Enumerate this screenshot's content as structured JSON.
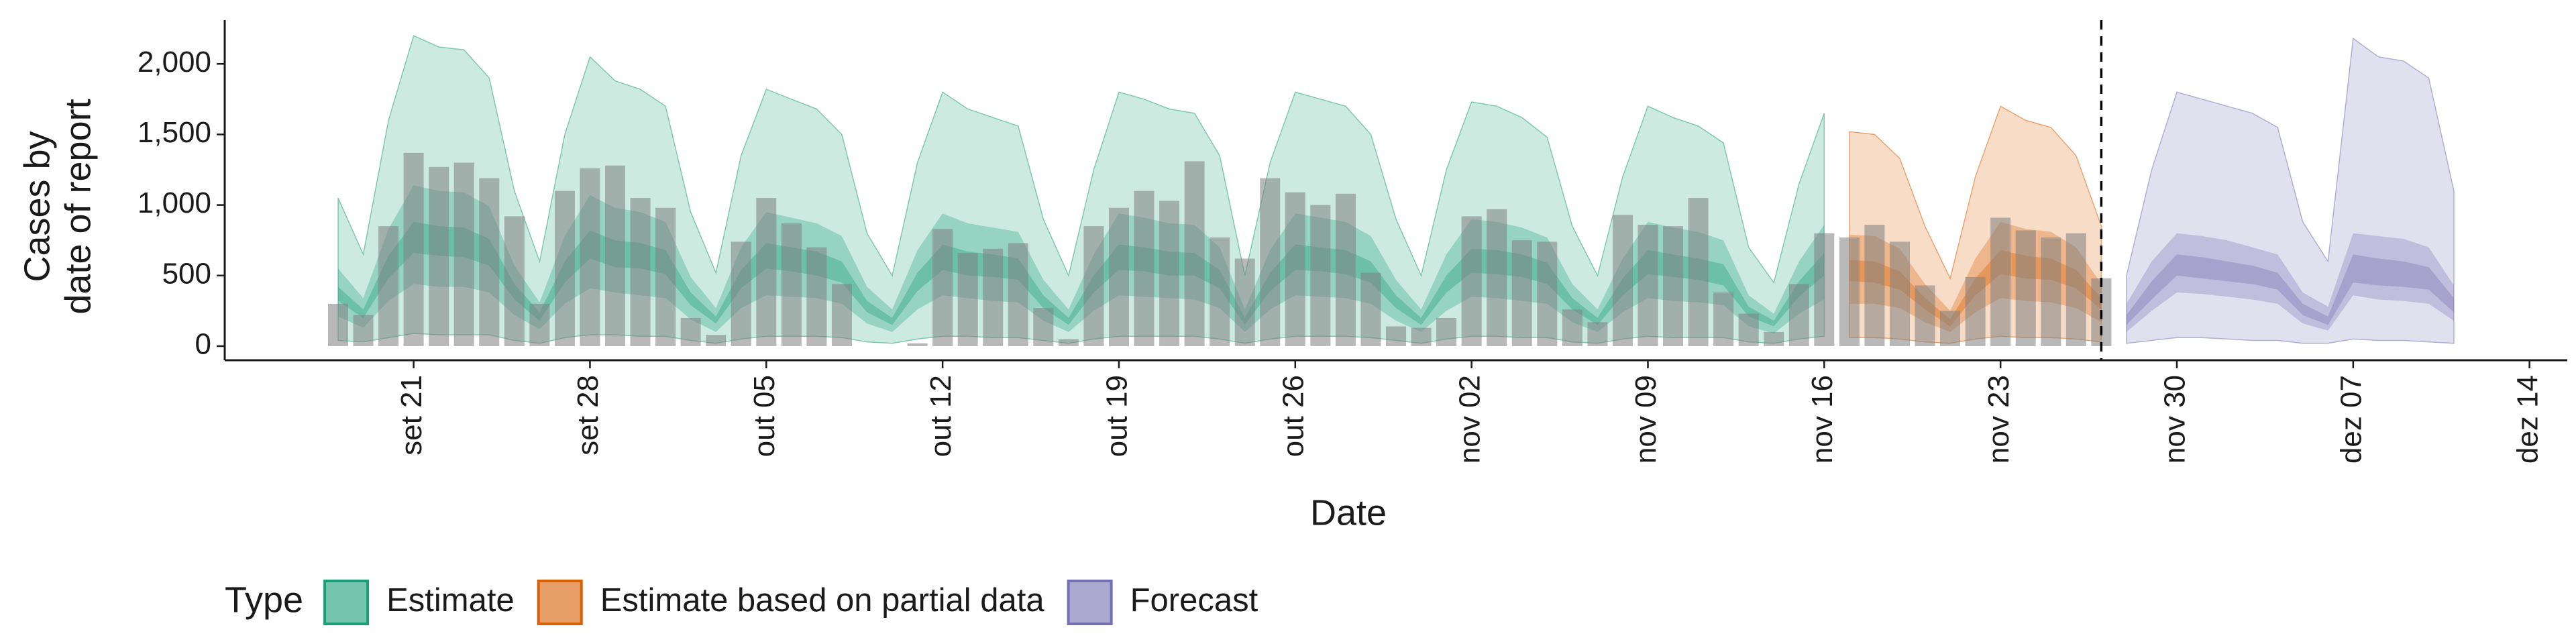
{
  "chart_data": {
    "type": "ribbon",
    "ylabel": [
      "Cases by",
      "date of report"
    ],
    "xlabel": "Date",
    "legend_title": "Type",
    "x": [
      "set 14",
      "set 15",
      "set 16",
      "set 17",
      "set 18",
      "set 19",
      "set 20",
      "set 21",
      "set 22",
      "set 23",
      "set 24",
      "set 25",
      "set 26",
      "set 27",
      "set 28",
      "set 29",
      "set 30",
      "out 01",
      "out 02",
      "out 03",
      "out 04",
      "out 05",
      "out 06",
      "out 07",
      "out 08",
      "out 09",
      "out 10",
      "out 11",
      "out 12",
      "out 13",
      "out 14",
      "out 15",
      "out 16",
      "out 17",
      "out 18",
      "out 19",
      "out 20",
      "out 21",
      "out 22",
      "out 23",
      "out 24",
      "out 25",
      "out 26",
      "out 27",
      "out 28",
      "out 29",
      "out 30",
      "out 31",
      "nov 01",
      "nov 02",
      "nov 03",
      "nov 04",
      "nov 05",
      "nov 06",
      "nov 07",
      "nov 08",
      "nov 09",
      "nov 10",
      "nov 11",
      "nov 12",
      "nov 13",
      "nov 14",
      "nov 15",
      "nov 16",
      "nov 17",
      "nov 18",
      "nov 19",
      "nov 20",
      "nov 21",
      "nov 22",
      "nov 23",
      "nov 24",
      "nov 25",
      "nov 26",
      "nov 27",
      "nov 28",
      "nov 29",
      "nov 30",
      "dez 01",
      "dez 02",
      "dez 03",
      "dez 04",
      "dez 05",
      "dez 06",
      "dez 07",
      "dez 08",
      "dez 09",
      "dez 10",
      "dez 11",
      "dez 12",
      "dez 13",
      "dez 14",
      "dez 15"
    ],
    "xticks": [
      "set 21",
      "set 28",
      "out 05",
      "out 12",
      "out 19",
      "out 26",
      "nov 02",
      "nov 09",
      "nov 16",
      "nov 23",
      "nov 30",
      "dez 07",
      "dez 14"
    ],
    "ylim": [
      -100,
      2310
    ],
    "yticks": [
      0,
      500,
      {
        "value": 1000,
        "label": "1,000"
      },
      {
        "value": 1500,
        "label": "1,500"
      },
      {
        "value": 2000,
        "label": "2,000"
      }
    ],
    "vline": "nov 27",
    "bars": {
      "color": "#808080",
      "x": [
        "set 18",
        "set 19",
        "set 20",
        "set 21",
        "set 22",
        "set 23",
        "set 24",
        "set 25",
        "set 26",
        "set 27",
        "set 28",
        "set 29",
        "set 30",
        "out 01",
        "out 02",
        "out 03",
        "out 04",
        "out 05",
        "out 06",
        "out 07",
        "out 08",
        "out 09",
        "out 10",
        "out 11",
        "out 12",
        "out 13",
        "out 14",
        "out 15",
        "out 16",
        "out 17",
        "out 18",
        "out 19",
        "out 20",
        "out 21",
        "out 22",
        "out 23",
        "out 24",
        "out 25",
        "out 26",
        "out 27",
        "out 28",
        "out 29",
        "out 30",
        "out 31",
        "nov 01",
        "nov 02",
        "nov 03",
        "nov 04",
        "nov 05",
        "nov 06",
        "nov 07",
        "nov 08",
        "nov 09",
        "nov 10",
        "nov 11",
        "nov 12",
        "nov 13",
        "nov 14",
        "nov 15",
        "nov 16",
        "nov 17",
        "nov 18",
        "nov 19",
        "nov 20",
        "nov 21",
        "nov 22",
        "nov 23",
        "nov 24",
        "nov 25",
        "nov 26",
        "nov 27"
      ],
      "values": [
        300,
        220,
        850,
        1370,
        1270,
        1300,
        1190,
        920,
        300,
        1100,
        1260,
        1280,
        1050,
        980,
        200,
        80,
        740,
        1050,
        870,
        700,
        440,
        0,
        0,
        20,
        830,
        660,
        690,
        730,
        270,
        50,
        850,
        980,
        1100,
        1030,
        1310,
        770,
        620,
        1190,
        1090,
        1000,
        1080,
        520,
        140,
        130,
        200,
        920,
        970,
        750,
        740,
        260,
        170,
        930,
        860,
        850,
        1050,
        380,
        230,
        100,
        440,
        800,
        770,
        860,
        740,
        430,
        250,
        490,
        910,
        820,
        770,
        800,
        480
      ]
    },
    "series": [
      {
        "name": "Estimate",
        "color": "#1b9e77",
        "x": [
          "set 18",
          "set 19",
          "set 20",
          "set 21",
          "set 22",
          "set 23",
          "set 24",
          "set 25",
          "set 26",
          "set 27",
          "set 28",
          "set 29",
          "set 30",
          "out 01",
          "out 02",
          "out 03",
          "out 04",
          "out 05",
          "out 06",
          "out 07",
          "out 08",
          "out 09",
          "out 10",
          "out 11",
          "out 12",
          "out 13",
          "out 14",
          "out 15",
          "out 16",
          "out 17",
          "out 18",
          "out 19",
          "out 20",
          "out 21",
          "out 22",
          "out 23",
          "out 24",
          "out 25",
          "out 26",
          "out 27",
          "out 28",
          "out 29",
          "out 30",
          "out 31",
          "nov 01",
          "nov 02",
          "nov 03",
          "nov 04",
          "nov 05",
          "nov 06",
          "nov 07",
          "nov 08",
          "nov 09",
          "nov 10",
          "nov 11",
          "nov 12",
          "nov 13",
          "nov 14",
          "nov 15",
          "nov 16"
        ],
        "upper_90": [
          1050,
          650,
          1600,
          2200,
          2120,
          2100,
          1900,
          1100,
          600,
          1500,
          2050,
          1880,
          1820,
          1700,
          950,
          520,
          1350,
          1820,
          1750,
          1680,
          1500,
          800,
          500,
          1300,
          1800,
          1680,
          1620,
          1560,
          900,
          500,
          1250,
          1800,
          1750,
          1680,
          1650,
          1350,
          500,
          1300,
          1800,
          1750,
          1700,
          1500,
          900,
          500,
          1250,
          1730,
          1700,
          1620,
          1480,
          850,
          500,
          1200,
          1700,
          1620,
          1560,
          1440,
          700,
          450,
          1150,
          1650
        ],
        "lower_90": [
          40,
          30,
          60,
          90,
          80,
          80,
          80,
          40,
          20,
          60,
          80,
          80,
          70,
          70,
          40,
          20,
          50,
          70,
          70,
          70,
          60,
          30,
          20,
          50,
          70,
          70,
          60,
          60,
          40,
          20,
          50,
          70,
          70,
          70,
          70,
          50,
          20,
          50,
          70,
          70,
          70,
          60,
          40,
          20,
          50,
          70,
          70,
          60,
          60,
          30,
          20,
          50,
          70,
          60,
          60,
          60,
          30,
          20,
          50,
          70
        ],
        "upper_50": [
          550,
          340,
          830,
          1140,
          1100,
          1090,
          990,
          570,
          310,
          780,
          1070,
          980,
          950,
          880,
          490,
          270,
          700,
          950,
          910,
          870,
          780,
          420,
          260,
          680,
          940,
          870,
          840,
          810,
          470,
          260,
          650,
          940,
          910,
          870,
          860,
          700,
          260,
          680,
          940,
          910,
          880,
          780,
          470,
          260,
          650,
          900,
          880,
          840,
          770,
          440,
          260,
          620,
          880,
          840,
          810,
          750,
          360,
          230,
          600,
          860
        ],
        "lower_50": [
          210,
          130,
          320,
          440,
          420,
          420,
          380,
          220,
          120,
          300,
          410,
          380,
          360,
          340,
          190,
          100,
          270,
          360,
          350,
          340,
          300,
          160,
          100,
          260,
          360,
          340,
          320,
          310,
          180,
          100,
          250,
          360,
          350,
          340,
          330,
          270,
          100,
          260,
          360,
          350,
          340,
          300,
          180,
          100,
          250,
          350,
          340,
          320,
          300,
          170,
          100,
          240,
          340,
          320,
          310,
          290,
          140,
          90,
          230,
          330
        ],
        "upper_20": [
          420,
          260,
          640,
          880,
          850,
          840,
          760,
          440,
          240,
          600,
          820,
          750,
          730,
          680,
          380,
          210,
          540,
          730,
          700,
          670,
          600,
          320,
          200,
          520,
          720,
          670,
          650,
          620,
          360,
          200,
          500,
          720,
          700,
          670,
          660,
          540,
          200,
          520,
          720,
          700,
          680,
          600,
          360,
          200,
          500,
          690,
          680,
          650,
          590,
          340,
          200,
          480,
          680,
          650,
          620,
          580,
          280,
          180,
          460,
          660
        ],
        "lower_20": [
          320,
          200,
          480,
          660,
          640,
          630,
          570,
          330,
          180,
          450,
          620,
          560,
          550,
          510,
          290,
          160,
          410,
          550,
          530,
          500,
          450,
          240,
          150,
          390,
          540,
          500,
          490,
          470,
          270,
          150,
          380,
          540,
          530,
          500,
          500,
          410,
          150,
          390,
          540,
          530,
          510,
          450,
          270,
          150,
          380,
          520,
          510,
          490,
          440,
          260,
          150,
          360,
          510,
          490,
          470,
          430,
          210,
          140,
          350,
          500
        ]
      },
      {
        "name": "Estimate based on partial data",
        "color": "#d95f02",
        "x": [
          "nov 17",
          "nov 18",
          "nov 19",
          "nov 20",
          "nov 21",
          "nov 22",
          "nov 23",
          "nov 24",
          "nov 25",
          "nov 26",
          "nov 27"
        ],
        "upper_90": [
          1520,
          1500,
          1330,
          850,
          480,
          1200,
          1700,
          1600,
          1550,
          1350,
          850
        ],
        "lower_90": [
          60,
          60,
          50,
          30,
          20,
          50,
          70,
          60,
          60,
          50,
          30
        ],
        "upper_50": [
          790,
          780,
          690,
          440,
          250,
          620,
          880,
          830,
          810,
          700,
          440
        ],
        "lower_50": [
          300,
          300,
          270,
          170,
          100,
          240,
          340,
          320,
          310,
          270,
          170
        ],
        "upper_20": [
          610,
          600,
          530,
          340,
          190,
          480,
          680,
          640,
          620,
          540,
          340
        ],
        "lower_20": [
          460,
          450,
          400,
          260,
          140,
          360,
          510,
          480,
          470,
          410,
          260
        ]
      },
      {
        "name": "Forecast",
        "color": "#7570b3",
        "x": [
          "nov 28",
          "nov 29",
          "nov 30",
          "dez 01",
          "dez 02",
          "dez 03",
          "dez 04",
          "dez 05",
          "dez 06",
          "dez 07",
          "dez 08",
          "dez 09",
          "dez 10",
          "dez 11"
        ],
        "upper_90": [
          500,
          1250,
          1800,
          1750,
          1700,
          1650,
          1550,
          880,
          600,
          2180,
          2050,
          2020,
          1900,
          1100
        ],
        "lower_90": [
          20,
          40,
          60,
          60,
          50,
          40,
          40,
          20,
          20,
          50,
          40,
          40,
          30,
          20
        ],
        "upper_50": [
          300,
          600,
          800,
          780,
          750,
          700,
          650,
          380,
          280,
          800,
          780,
          760,
          700,
          430
        ],
        "lower_50": [
          100,
          250,
          380,
          370,
          350,
          330,
          300,
          160,
          110,
          360,
          330,
          320,
          300,
          180
        ],
        "upper_20": [
          220,
          460,
          650,
          630,
          600,
          570,
          520,
          300,
          210,
          650,
          620,
          600,
          560,
          340
        ],
        "lower_20": [
          150,
          330,
          500,
          480,
          460,
          440,
          400,
          220,
          150,
          450,
          430,
          420,
          400,
          240
        ]
      }
    ]
  }
}
